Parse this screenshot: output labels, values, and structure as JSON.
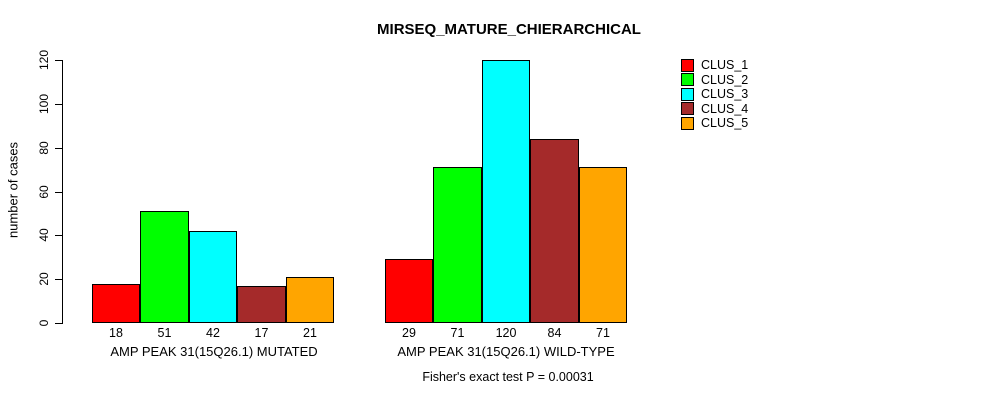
{
  "chart_data": {
    "type": "bar",
    "title": "MIRSEQ_MATURE_CHIERARCHICAL",
    "ylabel": "number of cases",
    "xlabel": "",
    "ylim": [
      0,
      120
    ],
    "yticks": [
      0,
      20,
      40,
      60,
      80,
      100,
      120
    ],
    "grid": false,
    "legend_position": "right",
    "categories": [
      "AMP PEAK 31(15Q26.1) MUTATED",
      "AMP PEAK 31(15Q26.1) WILD-TYPE"
    ],
    "series": [
      {
        "name": "CLUS_1",
        "color": "#FF0000",
        "values": [
          18,
          29
        ]
      },
      {
        "name": "CLUS_2",
        "color": "#00FF00",
        "values": [
          51,
          71
        ]
      },
      {
        "name": "CLUS_3",
        "color": "#00FFFF",
        "values": [
          42,
          120
        ]
      },
      {
        "name": "CLUS_4",
        "color": "#A52A2A",
        "values": [
          17,
          84
        ]
      },
      {
        "name": "CLUS_5",
        "color": "#FFA500",
        "values": [
          21,
          71
        ]
      }
    ],
    "bar_value_labels": true,
    "annotation": "Fisher's exact test P = 0.00031"
  }
}
